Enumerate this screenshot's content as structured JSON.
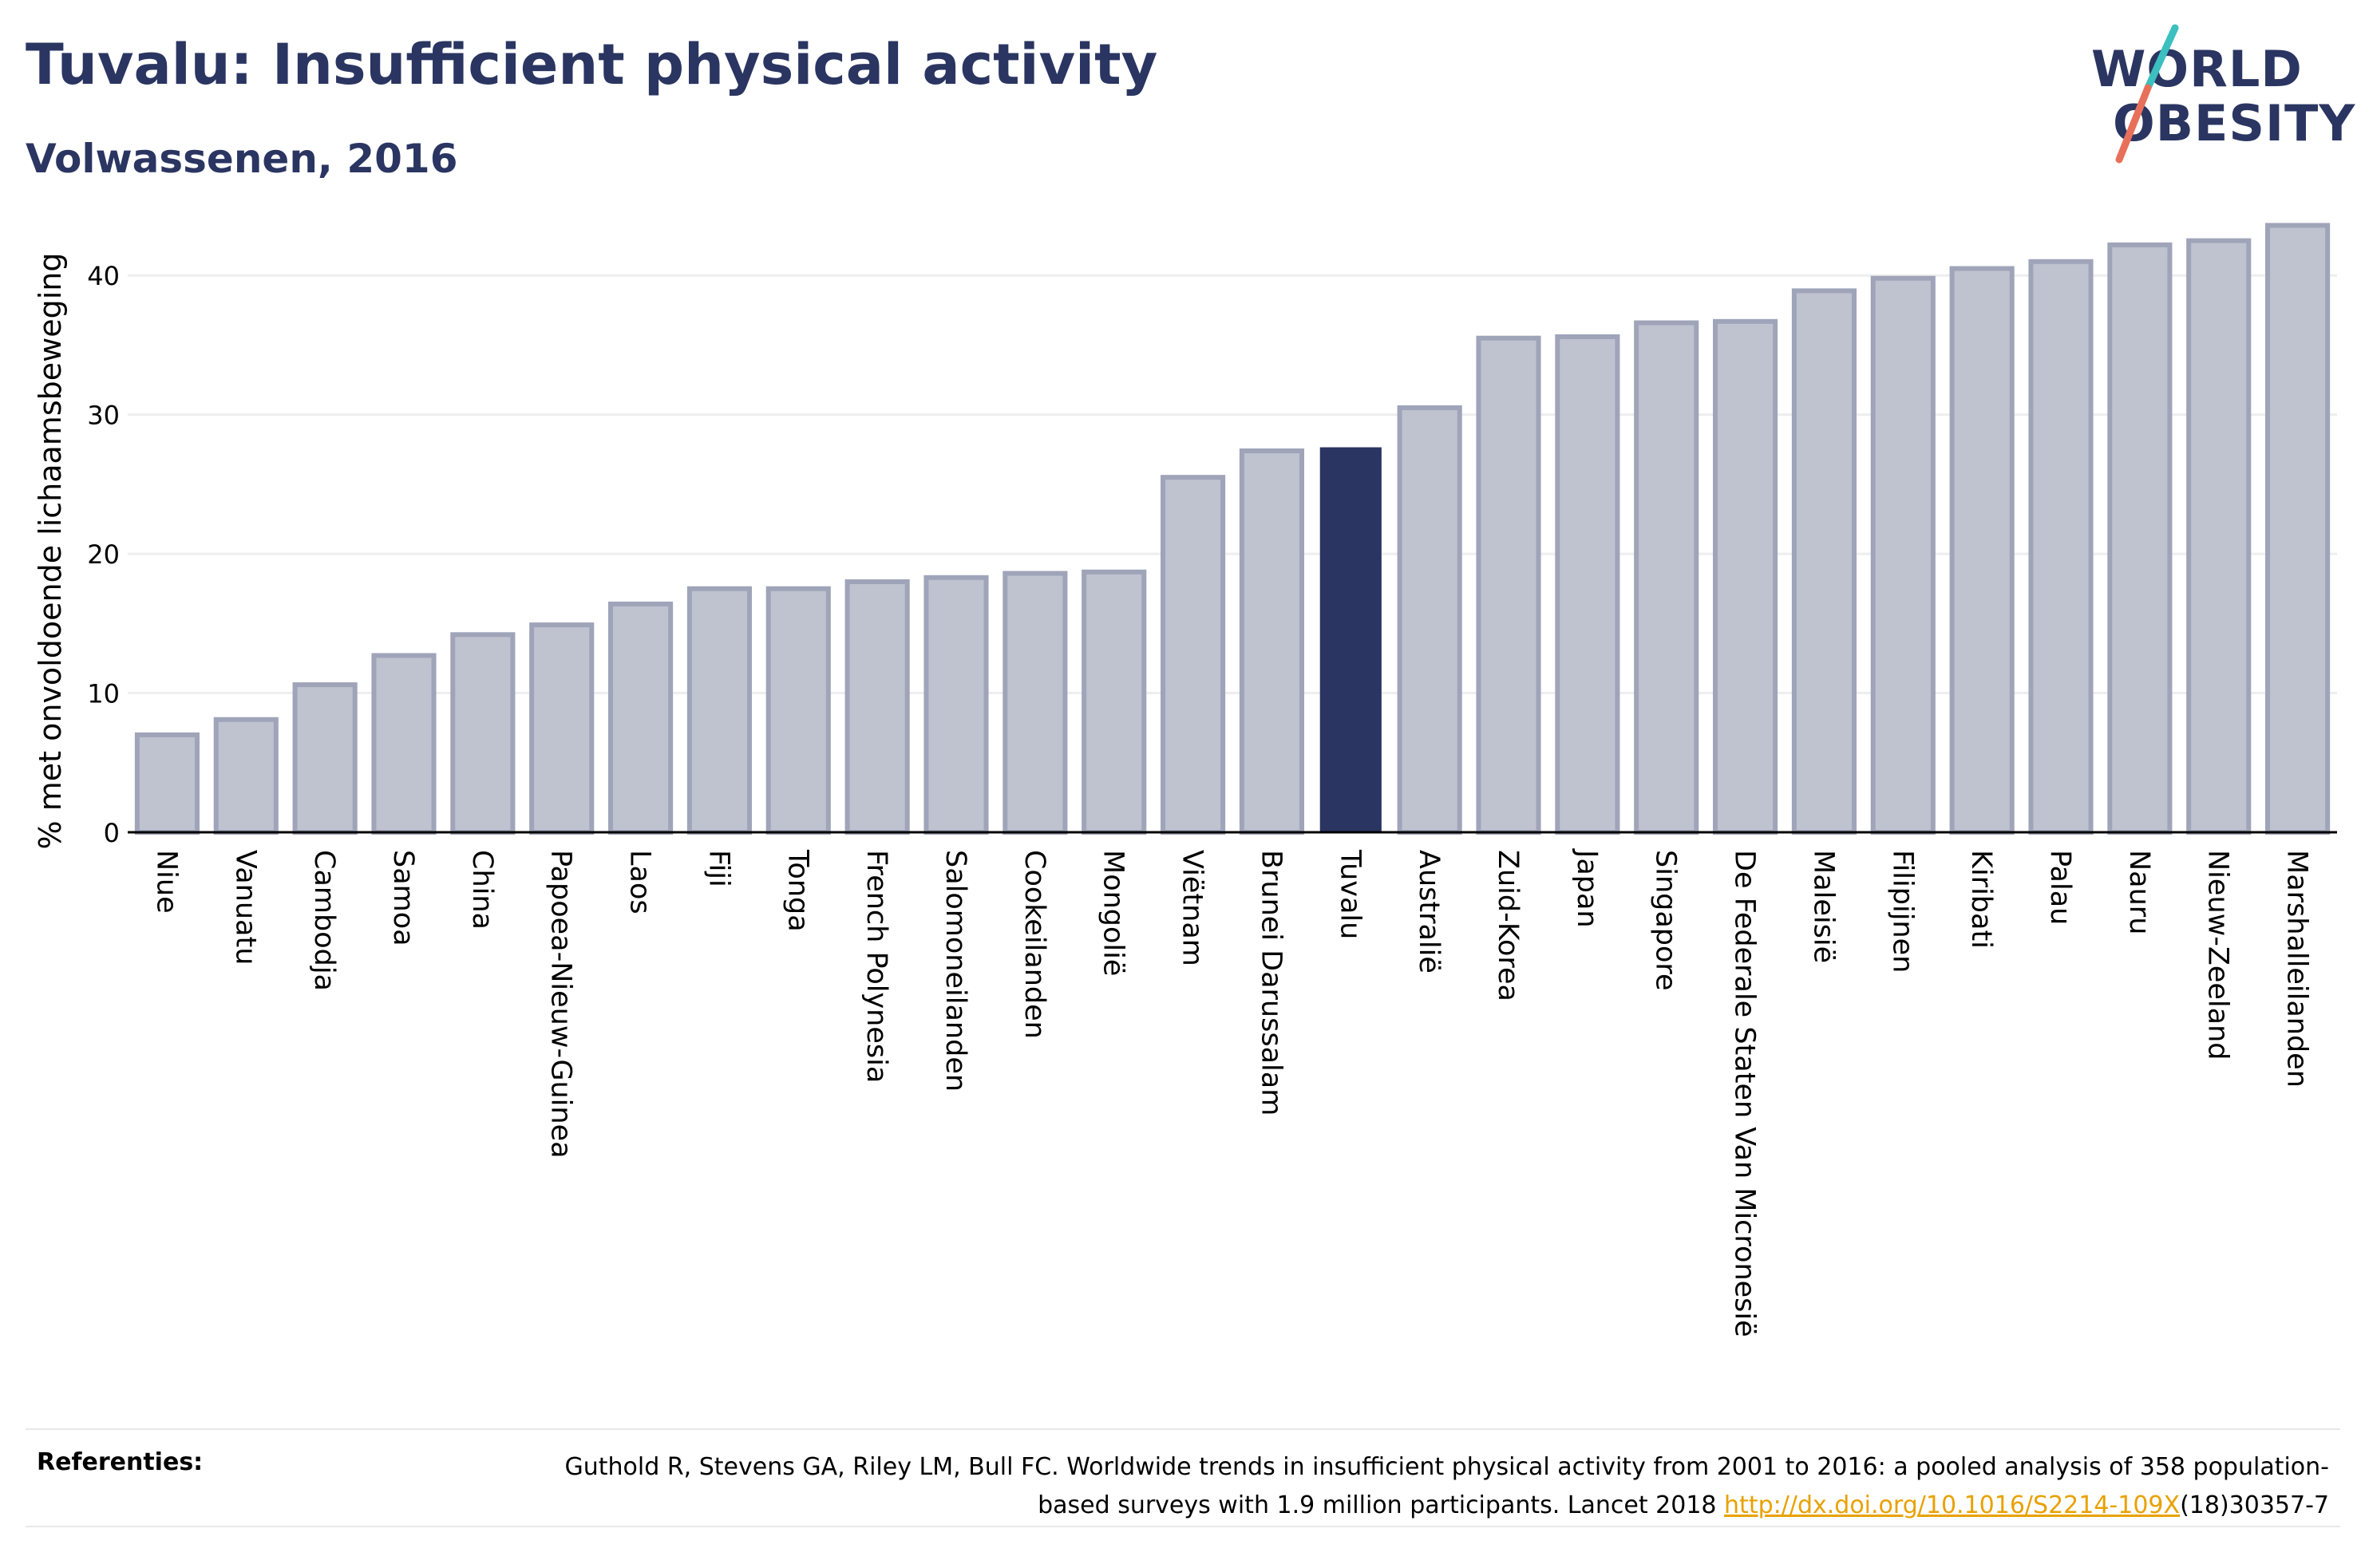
{
  "header": {
    "title": "Tuvalu: Insufficient physical activity",
    "subtitle": "Volwassenen, 2016"
  },
  "logo": {
    "line1": "WORLD",
    "line2": "OBESITY",
    "colors": {
      "text": "#2a3561",
      "stroke_top": "#3bbfbf",
      "stroke_bottom": "#e8705a"
    }
  },
  "chart_data": {
    "type": "bar",
    "ylabel": "% met onvoldoende lichaamsbeweging",
    "ylim": [
      0,
      45
    ],
    "yticks": [
      0,
      10,
      20,
      30,
      40
    ],
    "grid": true,
    "highlight": "Tuvalu",
    "colors": {
      "bar": "#bfc2cf",
      "bar_edge": "#9fa4b9",
      "highlight": "#2a3561",
      "grid": "#eeeeee"
    },
    "categories": [
      "Niue",
      "Vanuatu",
      "Cambodja",
      "Samoa",
      "China",
      "Papoea-Nieuw-Guinea",
      "Laos",
      "Fiji",
      "Tonga",
      "French Polynesia",
      "Salomoneilanden",
      "Cookeilanden",
      "Mongolië",
      "Viëtnam",
      "Brunei Darussalam",
      "Tuvalu",
      "Australië",
      "Zuid-Korea",
      "Japan",
      "Singapore",
      "De Federale Staten Van Micronesië",
      "Maleisië",
      "Filipijnen",
      "Kiribati",
      "Palau",
      "Nauru",
      "Nieuw-Zeeland",
      "Marshalleilanden"
    ],
    "values": [
      7.0,
      8.1,
      10.6,
      12.7,
      14.2,
      14.9,
      16.4,
      17.5,
      17.5,
      18.0,
      18.3,
      18.6,
      18.7,
      25.5,
      27.4,
      27.6,
      30.5,
      35.5,
      35.6,
      36.6,
      36.7,
      38.9,
      39.8,
      40.5,
      41.0,
      42.2,
      42.5,
      43.6
    ]
  },
  "references": {
    "label": "Referenties:",
    "text_before": "Guthold R, Stevens GA, Riley LM, Bull FC. Worldwide trends in insufficient physical activity from 2001 to 2016: a pooled analysis of 358 population-based surveys with 1.9 million participants. Lancet 2018 ",
    "link": "http://dx.doi.org/10.1016/S2214-109X",
    "text_after": "(18)30357-7"
  }
}
